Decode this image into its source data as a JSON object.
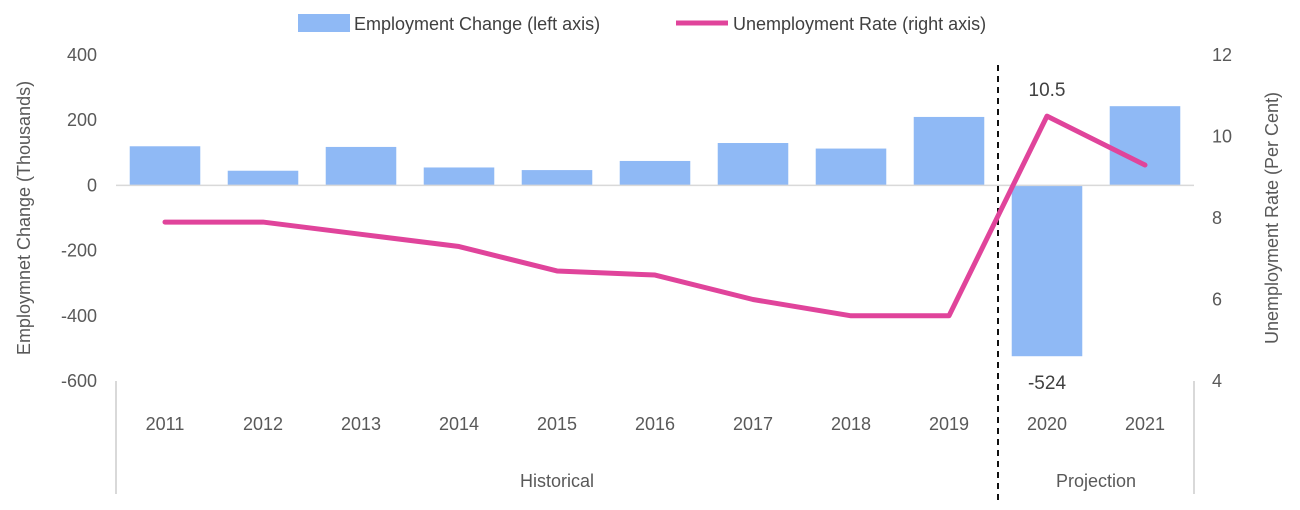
{
  "chart_data": {
    "type": "bar",
    "categories": [
      "2011",
      "2012",
      "2013",
      "2014",
      "2015",
      "2016",
      "2017",
      "2018",
      "2019",
      "2020",
      "2021"
    ],
    "series": [
      {
        "name": "Employment Change (left axis)",
        "type": "bar",
        "axis": "left",
        "color": "#8fb9f5",
        "values": [
          120,
          45,
          118,
          55,
          47,
          75,
          130,
          113,
          210,
          -524,
          243
        ]
      },
      {
        "name": "Unemployment Rate (right axis)",
        "type": "line",
        "axis": "right",
        "color": "#e0449b",
        "values": [
          7.9,
          7.9,
          7.6,
          7.3,
          6.7,
          6.6,
          6.0,
          5.6,
          5.6,
          10.5,
          9.3
        ]
      }
    ],
    "ylabel": "Employmnet Change (Thousands)",
    "y2label": "Unemployment Rate (Per Cent)",
    "ylim": [
      -600,
      400
    ],
    "y2lim": [
      4,
      12
    ],
    "yticks": [
      "400",
      "200",
      "0",
      "-200",
      "-400",
      "-600"
    ],
    "y2ticks": [
      "12",
      "10",
      "8",
      "6",
      "4"
    ],
    "data_labels": {
      "bar_2020": "-524",
      "line_2020": "10.5"
    },
    "groups": [
      {
        "label": "Historical",
        "first": "2011",
        "last": "2019"
      },
      {
        "label": "Projection",
        "first": "2020",
        "last": "2021"
      }
    ],
    "divider_between": [
      "2019",
      "2020"
    ],
    "legend_position": "top",
    "grid": false
  }
}
